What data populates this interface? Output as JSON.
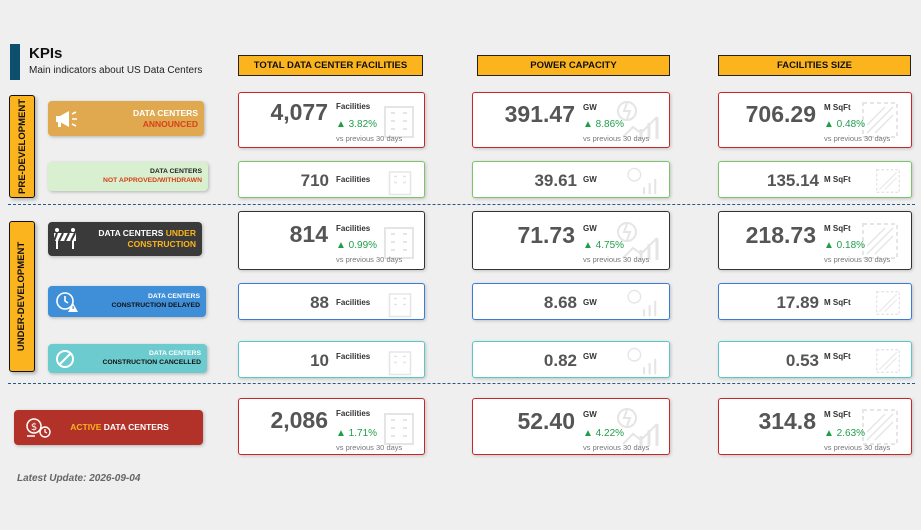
{
  "header": {
    "title": "KPIs",
    "subtitle": "Main indicators about US Data Centers"
  },
  "columns": {
    "facilities": "TOTAL DATA CENTER FACILITIES",
    "power": "POWER CAPACITY",
    "size": "FACILITIES SIZE"
  },
  "phases": {
    "pre": "PRE-DEVELOPMENT",
    "under": "UNDER-DEVELOPMENT"
  },
  "categories": {
    "announced": {
      "line1": "DATA CENTERS",
      "line2": "ANNOUNCED",
      "icon": "megaphone-icon"
    },
    "not_approved": {
      "line1": "DATA CENTERS",
      "line2": "NOT APPROVED/WITHDRAWN"
    },
    "under_construction": {
      "line1a": "DATA CENTERS ",
      "line1b": "UNDER",
      "line2": "CONSTRUCTION",
      "icon": "barrier-icon"
    },
    "delayed": {
      "line1": "DATA CENTERS",
      "line2": "CONSTRUCTION DELAYED",
      "icon": "clock-warning-icon"
    },
    "cancelled": {
      "line1": "DATA CENTERS",
      "line2": "CONSTRUCTION CANCELLED",
      "icon": "cancel-icon"
    },
    "active": {
      "line1a": "ACTIVE",
      "line1b": " DATA CENTERS",
      "icon": "dollar-clock-icon"
    }
  },
  "vs_text": "vs previous 30 days",
  "units": {
    "facilities": "Facilities",
    "power": "GW",
    "size": "M SqFt"
  },
  "rows": {
    "announced": {
      "facilities": "4,077",
      "facilities_pct": "▲ 3.82%",
      "power": "391.47",
      "power_pct": "▲ 8.86%",
      "size": "706.29",
      "size_pct": "▲ 0.48%"
    },
    "not_approved": {
      "facilities": "710",
      "power": "39.61",
      "size": "135.14"
    },
    "under_construction": {
      "facilities": "814",
      "facilities_pct": "▲ 0.99%",
      "power": "71.73",
      "power_pct": "▲ 4.75%",
      "size": "218.73",
      "size_pct": "▲ 0.18%"
    },
    "delayed": {
      "facilities": "88",
      "power": "8.68",
      "size": "17.89"
    },
    "cancelled": {
      "facilities": "10",
      "power": "0.82",
      "size": "0.53"
    },
    "active": {
      "facilities": "2,086",
      "facilities_pct": "▲ 1.71%",
      "power": "52.40",
      "power_pct": "▲ 4.22%",
      "size": "314.8",
      "size_pct": "▲ 2.63%"
    }
  },
  "colors": {
    "accent": "#fbb41d",
    "positive": "#1e9e4a",
    "announced_bg": "#e0a94f",
    "active_bg": "#b2322a",
    "construction_bg": "#3a3a3a",
    "delayed_bg": "#3f8fd8",
    "cancelled_bg": "#6ccbcf",
    "withdrawn_bg": "#d8f0d0"
  },
  "footer": {
    "label": "Latest Update: 2026-09-04"
  }
}
